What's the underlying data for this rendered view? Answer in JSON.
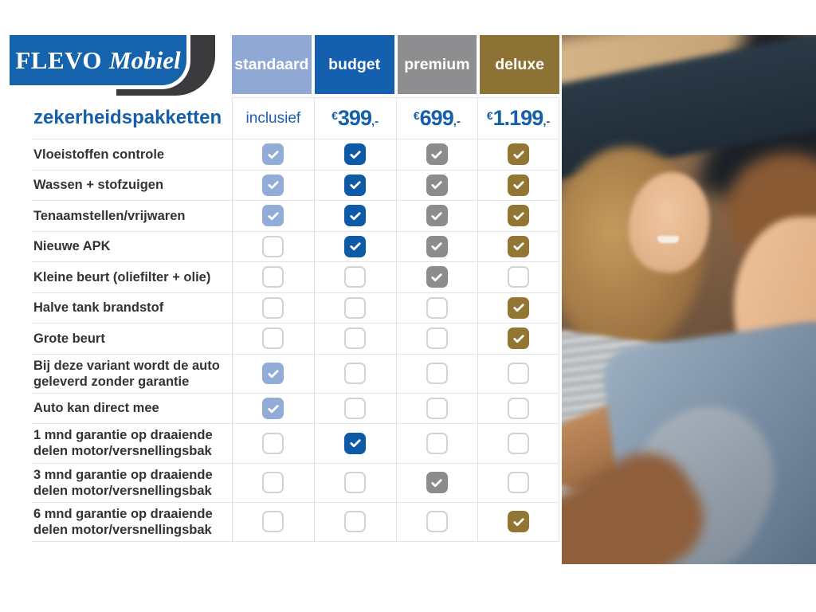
{
  "logo": {
    "brand_primary": "FLEVO",
    "brand_secondary": "Mobiel"
  },
  "title": "zekerheidspakketten",
  "colors": {
    "logo_blue": "#1563AC",
    "logo_dark": "#3B3B3D",
    "accent_blue": "#1560A8",
    "standaard": "#8FA9D4",
    "budget": "#1560AE",
    "premium": "#8E8E90",
    "deluxe": "#8C7234",
    "check_standaard": "#92ACD8",
    "check_budget": "#0E5AA7",
    "check_premium": "#8C8C8C",
    "check_deluxe": "#937633"
  },
  "packages": [
    {
      "id": "standaard",
      "label": "standaard",
      "header_color": "#8FA9D4",
      "check_color": "#92ACD8",
      "price_text": "inclusief"
    },
    {
      "id": "budget",
      "label": "budget",
      "header_color": "#1560AE",
      "check_color": "#0E5AA7",
      "price_currency": "€",
      "price_amount": "399",
      "price_suffix": ",-"
    },
    {
      "id": "premium",
      "label": "premium",
      "header_color": "#8E8E90",
      "check_color": "#8C8C8C",
      "price_currency": "€",
      "price_amount": "699",
      "price_suffix": ",-"
    },
    {
      "id": "deluxe",
      "label": "deluxe",
      "header_color": "#8C7234",
      "check_color": "#937633",
      "price_currency": "€",
      "price_amount": "1.199",
      "price_suffix": ",-"
    }
  ],
  "features": [
    {
      "label": "Vloeistoffen controle",
      "checks": [
        true,
        true,
        true,
        true
      ]
    },
    {
      "label": "Wassen + stofzuigen",
      "checks": [
        true,
        true,
        true,
        true
      ]
    },
    {
      "label": "Tenaamstellen/vrijwaren",
      "checks": [
        true,
        true,
        true,
        true
      ]
    },
    {
      "label": "Nieuwe APK",
      "checks": [
        false,
        true,
        true,
        true
      ]
    },
    {
      "label": "Kleine beurt (oliefilter + olie)",
      "checks": [
        false,
        false,
        true,
        false
      ]
    },
    {
      "label": "Halve tank brandstof",
      "checks": [
        false,
        false,
        false,
        true
      ]
    },
    {
      "label": "Grote beurt",
      "checks": [
        false,
        false,
        false,
        true
      ]
    },
    {
      "label": "Bij deze variant wordt de auto geleverd zonder garantie",
      "checks": [
        true,
        false,
        false,
        false
      ]
    },
    {
      "label": "Auto kan direct mee",
      "checks": [
        true,
        false,
        false,
        false
      ]
    },
    {
      "label": "1 mnd garantie op draaiende delen motor/versnellingsbak",
      "checks": [
        false,
        true,
        false,
        false
      ]
    },
    {
      "label": "3 mnd garantie op draaiende delen motor/versnellingsbak",
      "checks": [
        false,
        false,
        true,
        false
      ]
    },
    {
      "label": "6 mnd garantie op draaiende delen motor/versnellingsbak",
      "checks": [
        false,
        false,
        false,
        true
      ]
    }
  ]
}
